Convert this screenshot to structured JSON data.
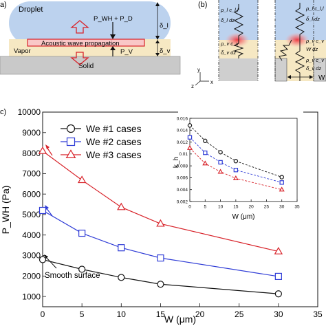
{
  "panel_a": {
    "label": "a)",
    "droplet": "Droplet",
    "pressure": "P_WH + P_D",
    "acoustic": "Acoustic wave propagation",
    "pv": "P_V",
    "vapor": "Vapor",
    "solid": "Solid",
    "delta_l": "δ_l",
    "delta_v": "δ_v"
  },
  "panel_b": {
    "label": "(b)",
    "axis_y": "y",
    "axis_z": "z",
    "axis_x": "x",
    "w": "W",
    "springs_left": [
      "ρ_l c_l,l",
      "δ_l dz",
      "ρ_v c_v",
      "δ_v dz"
    ],
    "springs_right": [
      "ρ_l c_l,l",
      "δ_l dz",
      "ρ_v c_v",
      "W dz",
      "ρ_v c_v",
      "δ_v dz"
    ]
  },
  "chart_data": [
    {
      "type": "line",
      "label": "c)",
      "xlabel": "W (μm)",
      "ylabel": "P_WH (Pa)",
      "xlim": [
        0,
        35
      ],
      "ylim": [
        500,
        10000
      ],
      "xticks": [
        0,
        5,
        10,
        15,
        20,
        25,
        30,
        35
      ],
      "yticks": [
        1000,
        2000,
        3000,
        4000,
        5000,
        6000,
        7000,
        8000,
        9000,
        10000
      ],
      "legend_position": "top-center",
      "annotation": "Smooth surface",
      "series": [
        {
          "name": "We #1 cases",
          "color": "#111111",
          "marker": "circle",
          "x": [
            0,
            5,
            10,
            15,
            30
          ],
          "values": [
            2800,
            2330,
            1930,
            1600,
            1130
          ]
        },
        {
          "name": "We #2 cases",
          "color": "#2e3bd6",
          "marker": "square",
          "x": [
            0,
            5,
            10,
            15,
            30
          ],
          "values": [
            5200,
            4090,
            3380,
            2880,
            1980
          ]
        },
        {
          "name": "We #3 cases",
          "color": "#d8232a",
          "marker": "triangle",
          "x": [
            0,
            5,
            10,
            15,
            30
          ],
          "values": [
            8100,
            6680,
            5360,
            4550,
            3200
          ]
        }
      ]
    },
    {
      "type": "line",
      "inset": true,
      "xlabel": "W (μm)",
      "ylabel": "k_h",
      "xlim": [
        0,
        35
      ],
      "ylim": [
        0.002,
        0.016
      ],
      "xticks": [
        0,
        5,
        10,
        15,
        20,
        25,
        30,
        35
      ],
      "yticks": [
        0.002,
        0.004,
        0.006,
        0.008,
        0.01,
        0.012,
        0.014,
        0.016
      ],
      "series": [
        {
          "color": "#111111",
          "marker": "circle",
          "dashed": true,
          "x": [
            0,
            5,
            10,
            15,
            30
          ],
          "values": [
            0.0148,
            0.0122,
            0.0103,
            0.0088,
            0.0061
          ]
        },
        {
          "color": "#2e3bd6",
          "marker": "square",
          "dashed": true,
          "x": [
            0,
            5,
            10,
            15,
            30
          ],
          "values": [
            0.0128,
            0.0102,
            0.0086,
            0.0073,
            0.0052
          ]
        },
        {
          "color": "#d8232a",
          "marker": "triangle",
          "dashed": true,
          "x": [
            0,
            5,
            10,
            15,
            30
          ],
          "values": [
            0.011,
            0.0084,
            0.007,
            0.0059,
            0.004
          ]
        }
      ]
    }
  ]
}
